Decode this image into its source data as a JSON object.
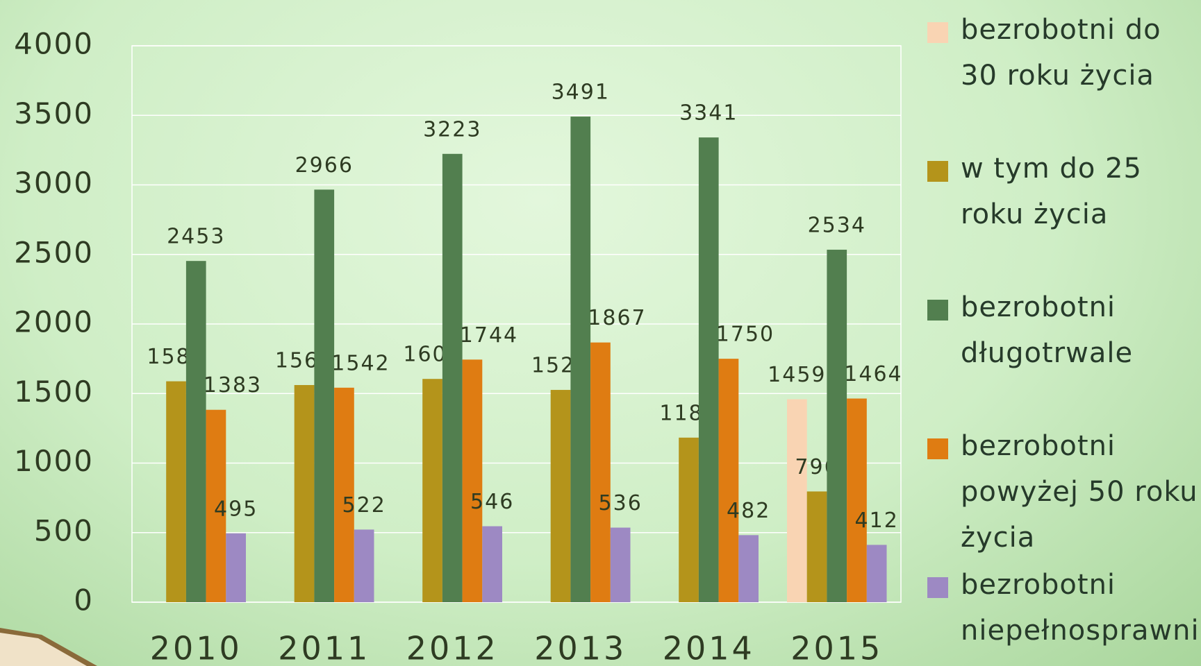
{
  "chart_data": {
    "type": "bar",
    "categories": [
      "2010",
      "2011",
      "2012",
      "2013",
      "2014",
      "2015"
    ],
    "series": [
      {
        "name": "bezrobotni do 30 roku życia",
        "color": "#f9d4b3",
        "values": [
          null,
          null,
          null,
          null,
          null,
          1459
        ]
      },
      {
        "name": "w tym do 25 roku życia",
        "color": "#b4941b",
        "values": [
          1588,
          1561,
          1605,
          1526,
          1183,
          796
        ]
      },
      {
        "name": "bezrobotni długotrwale",
        "color": "#527f4f",
        "values": [
          2453,
          2966,
          3223,
          3491,
          3341,
          2534
        ]
      },
      {
        "name": "bezrobotni powyżej 50 roku życia",
        "color": "#df7c12",
        "values": [
          1383,
          1542,
          1744,
          1867,
          1750,
          1464
        ]
      },
      {
        "name": "bezrobotni niepełnosprawni",
        "color": "#9d89c3",
        "values": [
          495,
          522,
          546,
          536,
          482,
          412
        ]
      }
    ],
    "ylim": [
      0,
      4000
    ],
    "yticks": [
      0,
      500,
      1000,
      1500,
      2000,
      2500,
      3000,
      3500,
      4000
    ],
    "grid": true,
    "legend": "right"
  }
}
